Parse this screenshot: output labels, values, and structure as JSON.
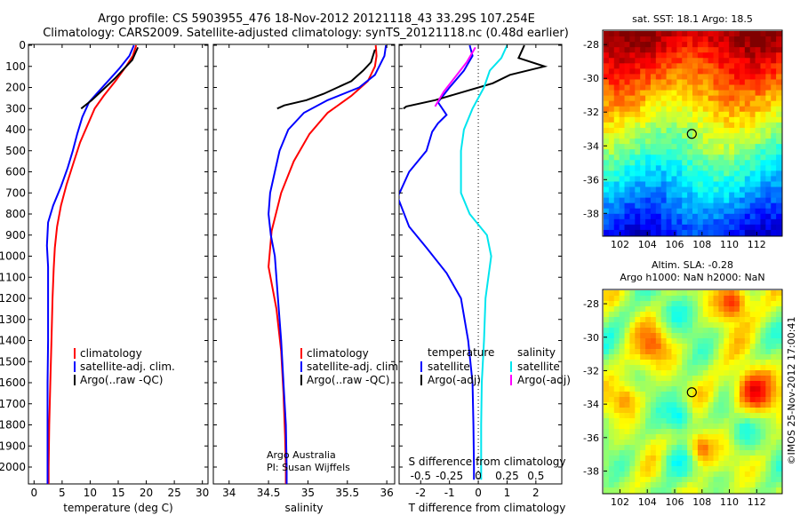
{
  "header": {
    "line1": "Argo profile: CS 5903955_476 18-Nov-2012 20121118_43 33.29S 107.254E",
    "line2": "Climatology: CARS2009. Satellite-adjusted climatology: synTS_20121118.nc (0.48d earlier)"
  },
  "colors": {
    "climatology": "#ff0000",
    "satellite": "#0000ff",
    "argo": "#000000",
    "sal_satellite": "#00e5ee",
    "sal_argo": "#ff00ff"
  },
  "chart_data": [
    {
      "type": "line",
      "xlabel": "temperature (deg C)",
      "xlim": [
        -1,
        31
      ],
      "ylim": [
        2080,
        0
      ],
      "xticks": [
        "0",
        "5",
        "10",
        "15",
        "20",
        "25",
        "30"
      ],
      "yticks": [
        "0",
        "100",
        "200",
        "300",
        "400",
        "500",
        "600",
        "700",
        "800",
        "900",
        "1000",
        "1100",
        "1200",
        "1300",
        "1400",
        "1500",
        "1600",
        "1700",
        "1800",
        "1900",
        "2000"
      ],
      "legend": [
        "climatology",
        "satellite-adj. clim.",
        "Argo(..raw -QC)"
      ],
      "series": [
        {
          "name": "climatology",
          "color": "#ff0000",
          "points": [
            [
              18.2,
              0
            ],
            [
              17.6,
              50
            ],
            [
              16.4,
              100
            ],
            [
              14.5,
              170
            ],
            [
              12.4,
              240
            ],
            [
              10.8,
              300
            ],
            [
              9.5,
              380
            ],
            [
              8.2,
              460
            ],
            [
              7,
              560
            ],
            [
              5.8,
              660
            ],
            [
              4.8,
              760
            ],
            [
              4.1,
              860
            ],
            [
              3.7,
              960
            ],
            [
              3.5,
              1060
            ],
            [
              3.3,
              1200
            ],
            [
              3.1,
              1400
            ],
            [
              2.9,
              1600
            ],
            [
              2.7,
              1800
            ],
            [
              2.6,
              2000
            ],
            [
              2.6,
              2080
            ]
          ]
        },
        {
          "name": "satellite-adj. clim.",
          "color": "#0000ff",
          "points": [
            [
              17.8,
              0
            ],
            [
              17,
              50
            ],
            [
              15.2,
              110
            ],
            [
              12.5,
              190
            ],
            [
              9.8,
              270
            ],
            [
              8.6,
              340
            ],
            [
              7.7,
              420
            ],
            [
              6.9,
              500
            ],
            [
              6,
              580
            ],
            [
              4.8,
              670
            ],
            [
              3.4,
              760
            ],
            [
              2.5,
              840
            ],
            [
              2.3,
              950
            ],
            [
              2.5,
              1050
            ],
            [
              2.5,
              1200
            ],
            [
              2.5,
              1400
            ],
            [
              2.4,
              1600
            ],
            [
              2.4,
              1800
            ],
            [
              2.4,
              2000
            ],
            [
              2.4,
              2080
            ]
          ]
        },
        {
          "name": "Argo(..raw -QC)",
          "color": "#000000",
          "points": [
            [
              18.5,
              10
            ],
            [
              17.5,
              70
            ],
            [
              14.3,
              160
            ],
            [
              12.3,
              210
            ],
            [
              10.3,
              260
            ],
            [
              8.4,
              300
            ]
          ]
        }
      ]
    },
    {
      "type": "line",
      "xlabel": "salinity",
      "xlim": [
        33.8,
        36.1
      ],
      "ylim": [
        2080,
        0
      ],
      "xticks": [
        "34",
        "34.5",
        "35",
        "35.5",
        "36"
      ],
      "legend": [
        "climatology",
        "satellite-adj. clim.",
        "Argo(..raw -QC)"
      ],
      "annotation": [
        "Argo Australia",
        "PI: Susan Wijffels"
      ],
      "series": [
        {
          "name": "climatology",
          "color": "#ff0000",
          "points": [
            [
              35.86,
              0
            ],
            [
              35.87,
              50
            ],
            [
              35.85,
              100
            ],
            [
              35.76,
              170
            ],
            [
              35.55,
              240
            ],
            [
              35.25,
              320
            ],
            [
              35.02,
              420
            ],
            [
              34.82,
              550
            ],
            [
              34.66,
              700
            ],
            [
              34.54,
              880
            ],
            [
              34.5,
              1050
            ],
            [
              34.6,
              1250
            ],
            [
              34.66,
              1450
            ],
            [
              34.69,
              1650
            ],
            [
              34.71,
              1850
            ],
            [
              34.72,
              2000
            ],
            [
              34.72,
              2080
            ]
          ]
        },
        {
          "name": "satellite-adj. clim.",
          "color": "#0000ff",
          "points": [
            [
              35.99,
              0
            ],
            [
              35.97,
              50
            ],
            [
              35.85,
              140
            ],
            [
              35.65,
              200
            ],
            [
              35.25,
              260
            ],
            [
              34.95,
              320
            ],
            [
              34.75,
              400
            ],
            [
              34.64,
              500
            ],
            [
              34.58,
              600
            ],
            [
              34.52,
              700
            ],
            [
              34.5,
              800
            ],
            [
              34.53,
              900
            ],
            [
              34.58,
              1000
            ],
            [
              34.62,
              1200
            ],
            [
              34.66,
              1400
            ],
            [
              34.69,
              1600
            ],
            [
              34.72,
              1800
            ],
            [
              34.73,
              2000
            ],
            [
              34.73,
              2080
            ]
          ]
        },
        {
          "name": "Argo(..raw -QC)",
          "color": "#000000",
          "points": [
            [
              35.85,
              20
            ],
            [
              35.8,
              80
            ],
            [
              35.7,
              120
            ],
            [
              35.55,
              170
            ],
            [
              35.2,
              230
            ],
            [
              34.98,
              260
            ],
            [
              34.7,
              285
            ],
            [
              34.61,
              300
            ]
          ]
        }
      ]
    },
    {
      "type": "line",
      "xlabel": "T difference from climatology",
      "xlabel2": "S difference from climatology",
      "xlim": [
        -2.75,
        2.9
      ],
      "ylim": [
        2080,
        0
      ],
      "xticks": [
        "-2",
        "-1",
        "0",
        "1",
        "2"
      ],
      "xticks_top": [
        "-0.5",
        "-0.25",
        "0",
        "0.25",
        "0.5"
      ],
      "legend_title_t": "temperature",
      "legend_title_s": "salinity",
      "legend": [
        "satellite",
        "Argo(-adj)",
        "satellite",
        "Argo(-adj)"
      ],
      "series": [
        {
          "name": "satellite",
          "color": "#0000ff",
          "points": [
            [
              -0.3,
              0
            ],
            [
              -0.2,
              50
            ],
            [
              -0.5,
              120
            ],
            [
              -1,
              200
            ],
            [
              -1.4,
              270
            ],
            [
              -1.1,
              330
            ],
            [
              -1.4,
              370
            ],
            [
              -1.6,
              410
            ],
            [
              -1.8,
              500
            ],
            [
              -2.4,
              600
            ],
            [
              -2.8,
              720
            ],
            [
              -2.4,
              860
            ],
            [
              -1.8,
              960
            ],
            [
              -1.1,
              1080
            ],
            [
              -0.6,
              1200
            ],
            [
              -0.35,
              1400
            ],
            [
              -0.2,
              1600
            ],
            [
              -0.17,
              1800
            ],
            [
              -0.15,
              2000
            ],
            [
              -0.15,
              2060
            ]
          ]
        },
        {
          "name": "Argo(-adj)",
          "color": "#000000",
          "points": [
            [
              1.6,
              0
            ],
            [
              1.4,
              60
            ],
            [
              2.3,
              100
            ],
            [
              1.1,
              140
            ],
            [
              0.5,
              180
            ],
            [
              -0.5,
              220
            ],
            [
              -1.5,
              260
            ],
            [
              -2.5,
              290
            ],
            [
              -2.6,
              300
            ]
          ]
        },
        {
          "name": "satellite",
          "color": "#00e5ee",
          "points": [
            [
              1.0,
              0
            ],
            [
              0.8,
              60
            ],
            [
              0.4,
              120
            ],
            [
              0.2,
              200
            ],
            [
              -0.2,
              300
            ],
            [
              -0.5,
              400
            ],
            [
              -0.6,
              500
            ],
            [
              -0.6,
              600
            ],
            [
              -0.6,
              700
            ],
            [
              -0.3,
              800
            ],
            [
              0.3,
              900
            ],
            [
              0.45,
              1000
            ],
            [
              0.35,
              1100
            ],
            [
              0.25,
              1200
            ],
            [
              0.2,
              1400
            ],
            [
              0.12,
              1600
            ],
            [
              0.1,
              1800
            ],
            [
              0.1,
              2000
            ],
            [
              0.1,
              2060
            ]
          ]
        },
        {
          "name": "Argo(-adj)",
          "color": "#ff00ff",
          "points": [
            [
              -0.1,
              10
            ],
            [
              -0.4,
              80
            ],
            [
              -0.8,
              150
            ],
            [
              -1.2,
              220
            ],
            [
              -1.5,
              290
            ]
          ]
        }
      ]
    },
    {
      "type": "heatmap",
      "title": "sat. SST: 18.1  Argo: 18.5",
      "xticks": [
        "102",
        "104",
        "106",
        "108",
        "110",
        "112"
      ],
      "yticks": [
        "-28",
        "-30",
        "-32",
        "-34",
        "-36",
        "-38"
      ],
      "xlim": [
        100.8,
        113.8
      ],
      "ylim": [
        -39.3,
        -27.2
      ],
      "marker": [
        107.254,
        -33.29
      ]
    },
    {
      "type": "heatmap",
      "title": "Altim. SLA: -0.28",
      "title2": "Argo h1000: NaN h2000: NaN",
      "xticks": [
        "102",
        "104",
        "106",
        "108",
        "110",
        "112"
      ],
      "yticks": [
        "-28",
        "-30",
        "-32",
        "-34",
        "-36",
        "-38"
      ],
      "xlim": [
        100.8,
        113.8
      ],
      "ylim": [
        -39.3,
        -27.2
      ],
      "marker": [
        107.254,
        -33.29
      ]
    }
  ],
  "side_text": "©IMOS 25-Nov-2012 17:00:41"
}
